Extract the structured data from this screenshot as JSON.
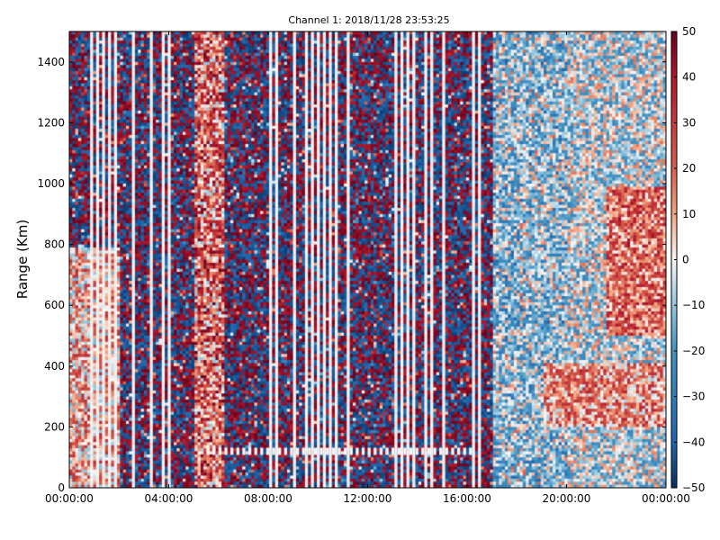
{
  "chart_data": {
    "type": "heatmap",
    "title": "Channel 1: 2018/11/28 23:53:25",
    "xlabel": "",
    "ylabel": "Range (Km)",
    "xlim": [
      "00:00:00",
      "24:00:00"
    ],
    "ylim": [
      0,
      1500
    ],
    "x_ticks": [
      "00:00:00",
      "04:00:00",
      "08:00:00",
      "12:00:00",
      "16:00:00",
      "20:00:00",
      "00:00:00"
    ],
    "y_ticks": [
      "0",
      "200",
      "400",
      "600",
      "800",
      "1000",
      "1200",
      "1400"
    ],
    "colorbar": {
      "colormap": "RdBu_r",
      "range": [
        -50,
        50
      ],
      "ticks": [
        "50",
        "40",
        "30",
        "20",
        "10",
        "0",
        "−10",
        "−20",
        "−30",
        "−40",
        "−50"
      ]
    },
    "colors": {
      "low": "#053061",
      "mid": "#f7f7f7",
      "high": "#67001f"
    },
    "grid": false,
    "legend": "none"
  }
}
